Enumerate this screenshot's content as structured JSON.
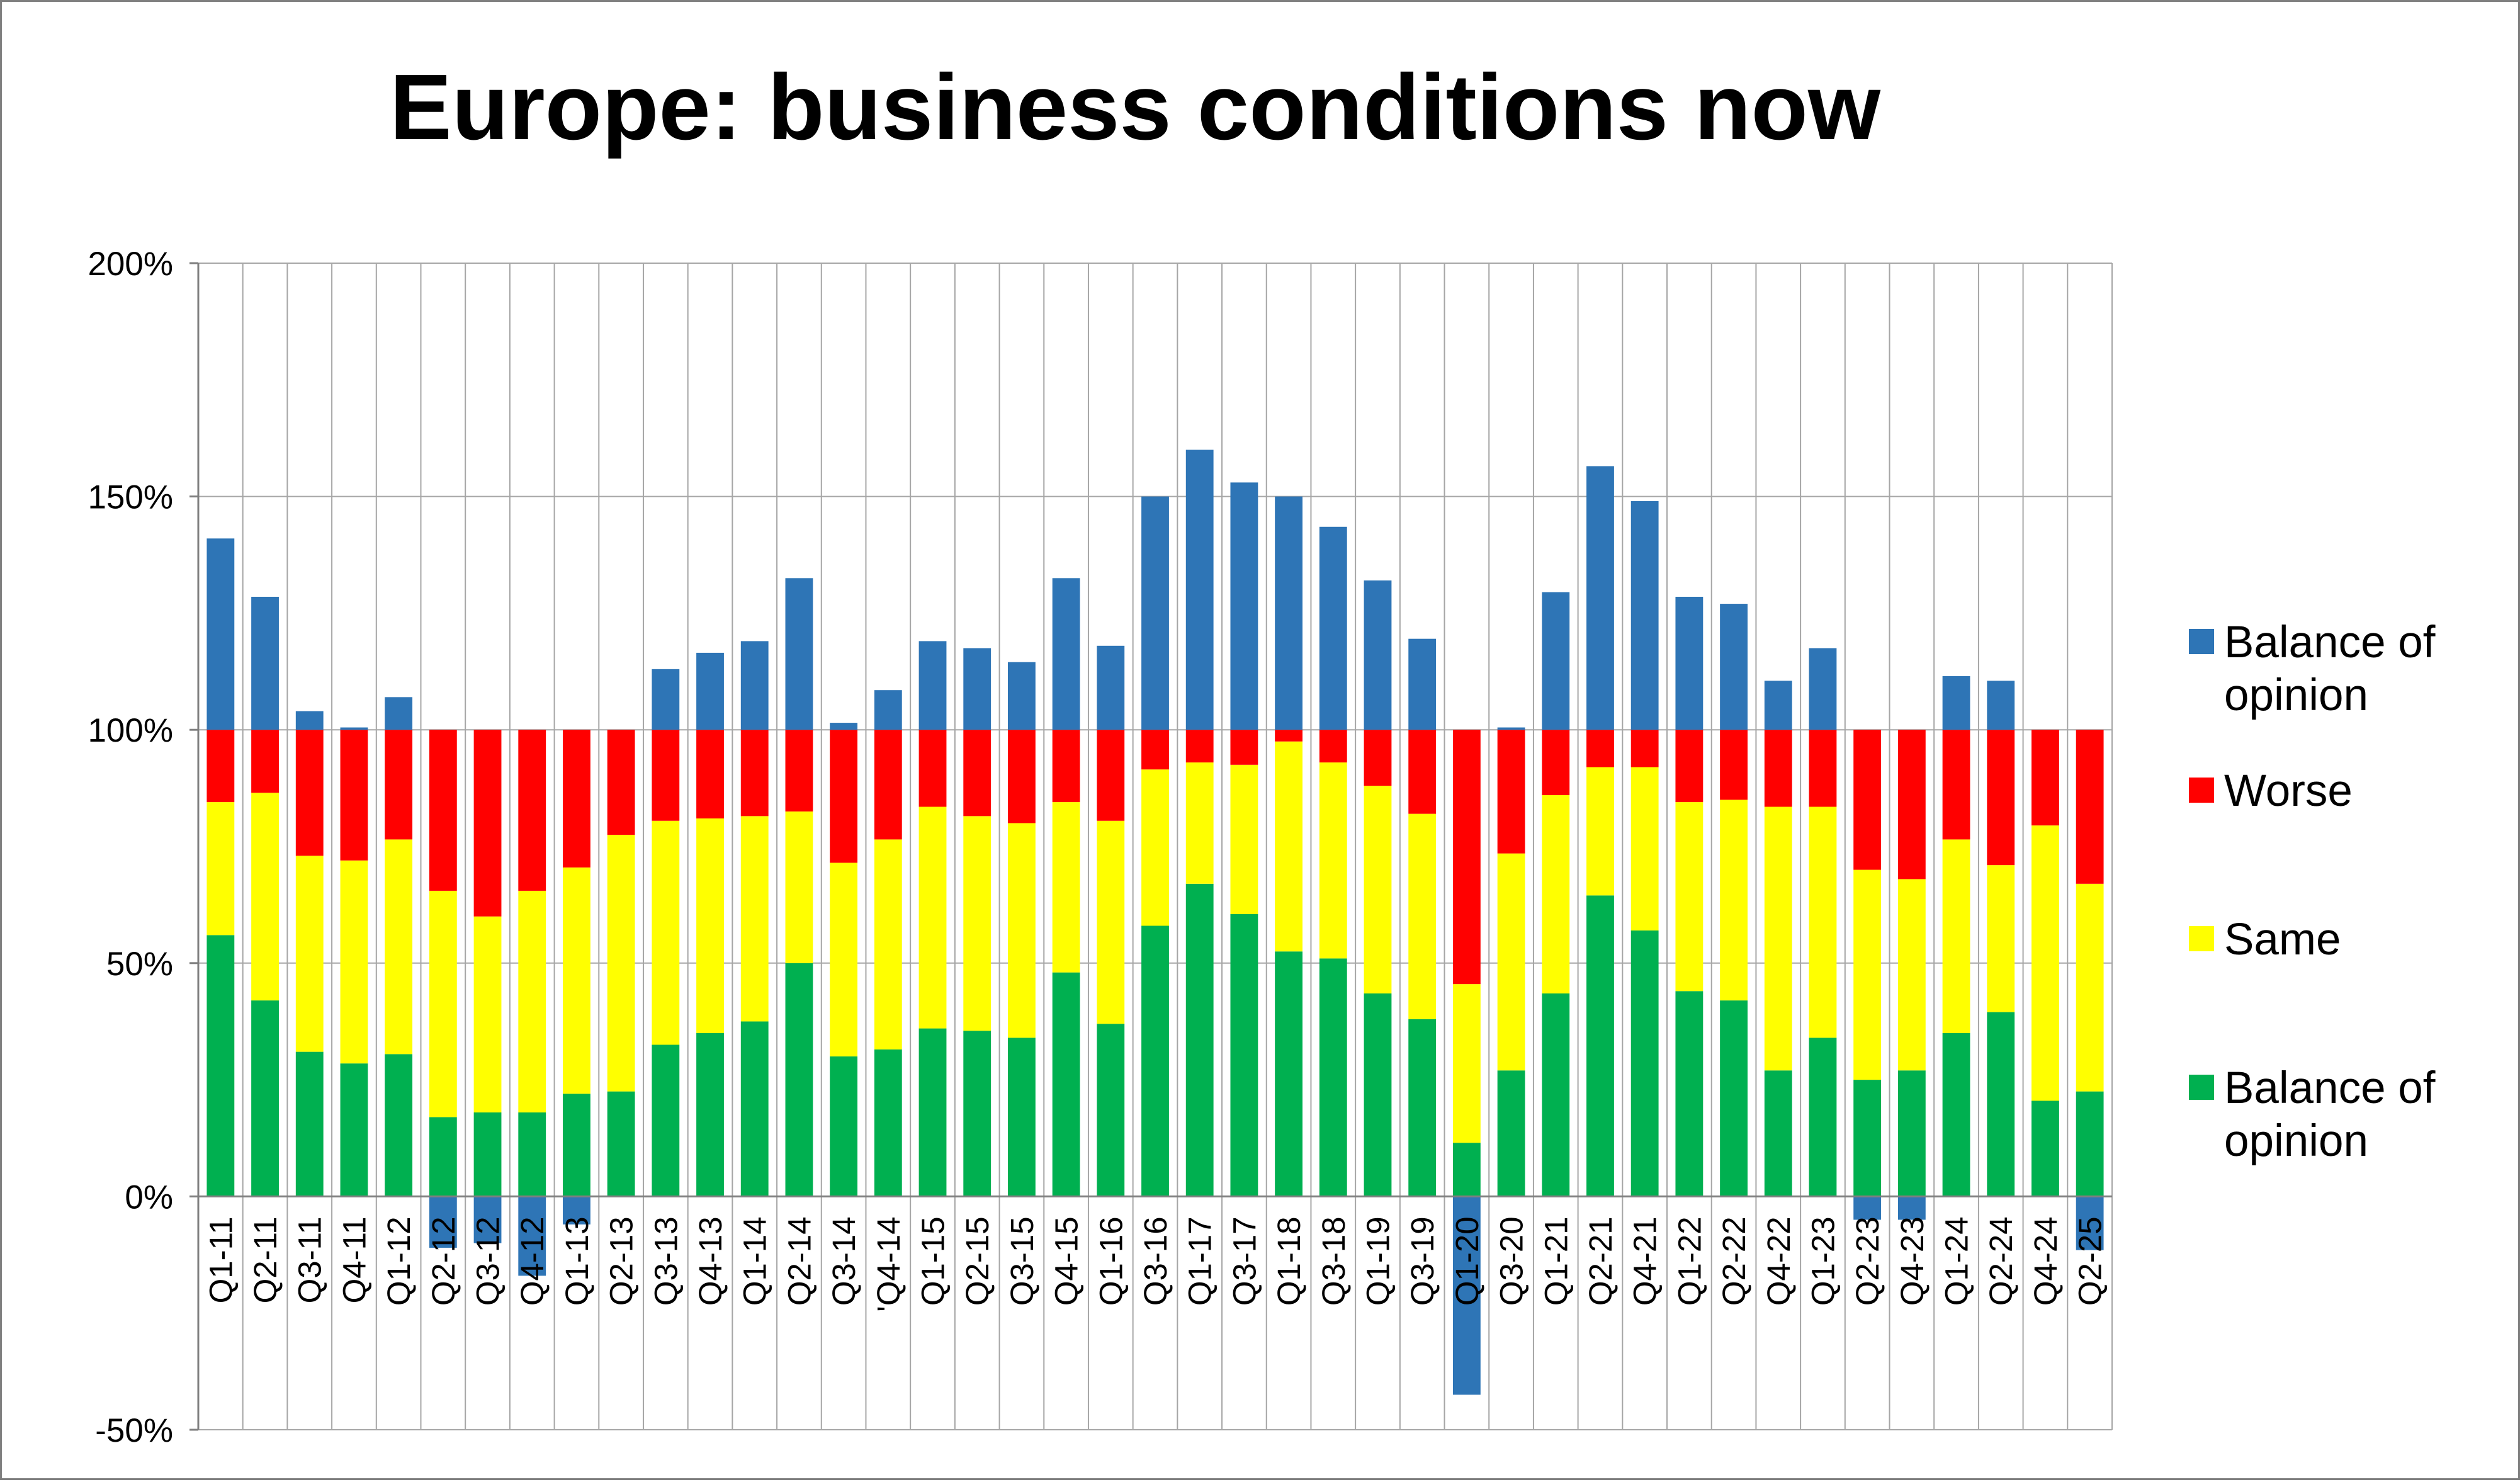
{
  "chart_data": {
    "type": "bar",
    "title": "Europe: business conditions now",
    "xlabel": "",
    "ylabel": "",
    "ylim": [
      -0.5,
      2.0
    ],
    "yticks": [
      2.0,
      1.5,
      1.0,
      0.5,
      0.0,
      -0.5
    ],
    "ytick_labels": [
      "200%",
      "150%",
      "100%",
      "50%",
      "0%",
      "-50%"
    ],
    "grid": true,
    "legend_position": "right",
    "categories": [
      "Q1-11",
      "Q2-11",
      "Q3-11",
      "Q4-11",
      "Q1-12",
      "Q2-12",
      "Q3-12",
      "Q4-12",
      "Q1-13",
      "Q2-13",
      "Q3-13",
      "Q4-13",
      "Q1-14",
      "Q2-14",
      "Q3-14",
      "'Q4-14",
      "Q1-15",
      "Q2-15",
      "Q3-15",
      "Q4-15",
      "Q1-16",
      "Q3-16",
      "Q1-17",
      "Q3-17",
      "Q1-18",
      "Q3-18",
      "Q1-19",
      "Q3-19",
      "Q1-20",
      "Q3-20",
      "Q1-21",
      "Q2-21",
      "Q4-21",
      "Q1-22",
      "Q2-22",
      "Q4-22",
      "Q1-23",
      "Q2-23",
      "Q4-23",
      "Q1-24",
      "Q2-24",
      "Q4-24",
      "Q2-25"
    ],
    "series": [
      {
        "name": "Balance of opinion",
        "color": "#00b050",
        "values": [
          0.56,
          0.42,
          0.31,
          0.285,
          0.305,
          0.17,
          0.18,
          0.18,
          0.22,
          0.225,
          0.325,
          0.35,
          0.375,
          0.5,
          0.3,
          0.315,
          0.36,
          0.355,
          0.34,
          0.48,
          0.37,
          0.58,
          0.67,
          0.605,
          0.525,
          0.51,
          0.435,
          0.38,
          0.115,
          0.27,
          0.435,
          0.645,
          0.57,
          0.44,
          0.42,
          0.27,
          0.34,
          0.25,
          0.27,
          0.35,
          0.395,
          0.205,
          0.225
        ]
      },
      {
        "name": "Same",
        "color": "#ffff00",
        "values": [
          0.285,
          0.445,
          0.42,
          0.435,
          0.46,
          0.485,
          0.42,
          0.475,
          0.485,
          0.55,
          0.48,
          0.46,
          0.44,
          0.325,
          0.415,
          0.45,
          0.475,
          0.46,
          0.46,
          0.365,
          0.435,
          0.335,
          0.26,
          0.32,
          0.45,
          0.42,
          0.445,
          0.44,
          0.34,
          0.465,
          0.425,
          0.275,
          0.35,
          0.405,
          0.43,
          0.565,
          0.495,
          0.45,
          0.41,
          0.415,
          0.315,
          0.59,
          0.445
        ]
      },
      {
        "name": "Worse",
        "color": "#ff0000",
        "values": [
          0.155,
          0.135,
          0.27,
          0.28,
          0.235,
          0.345,
          0.4,
          0.345,
          0.295,
          0.225,
          0.195,
          0.19,
          0.185,
          0.175,
          0.285,
          0.235,
          0.165,
          0.185,
          0.2,
          0.155,
          0.195,
          0.085,
          0.07,
          0.075,
          0.025,
          0.07,
          0.12,
          0.18,
          0.545,
          0.265,
          0.14,
          0.08,
          0.08,
          0.155,
          0.15,
          0.165,
          0.165,
          0.3,
          0.32,
          0.235,
          0.29,
          0.205,
          0.33
        ]
      },
      {
        "name": "Balance of opinion",
        "color": "#2e75b6",
        "values": [
          0.41,
          0.285,
          0.04,
          0.005,
          0.07,
          -0.11,
          -0.1,
          -0.17,
          -0.06,
          0.0,
          0.13,
          0.165,
          0.19,
          0.325,
          0.015,
          0.085,
          0.19,
          0.175,
          0.145,
          0.325,
          0.18,
          0.5,
          0.6,
          0.53,
          0.5,
          0.435,
          0.32,
          0.195,
          -0.425,
          0.005,
          0.295,
          0.565,
          0.49,
          0.285,
          0.27,
          0.105,
          0.175,
          -0.05,
          -0.05,
          0.115,
          0.105,
          0.0,
          -0.115
        ]
      }
    ],
    "legend_order": [
      3,
      2,
      1,
      0
    ]
  }
}
